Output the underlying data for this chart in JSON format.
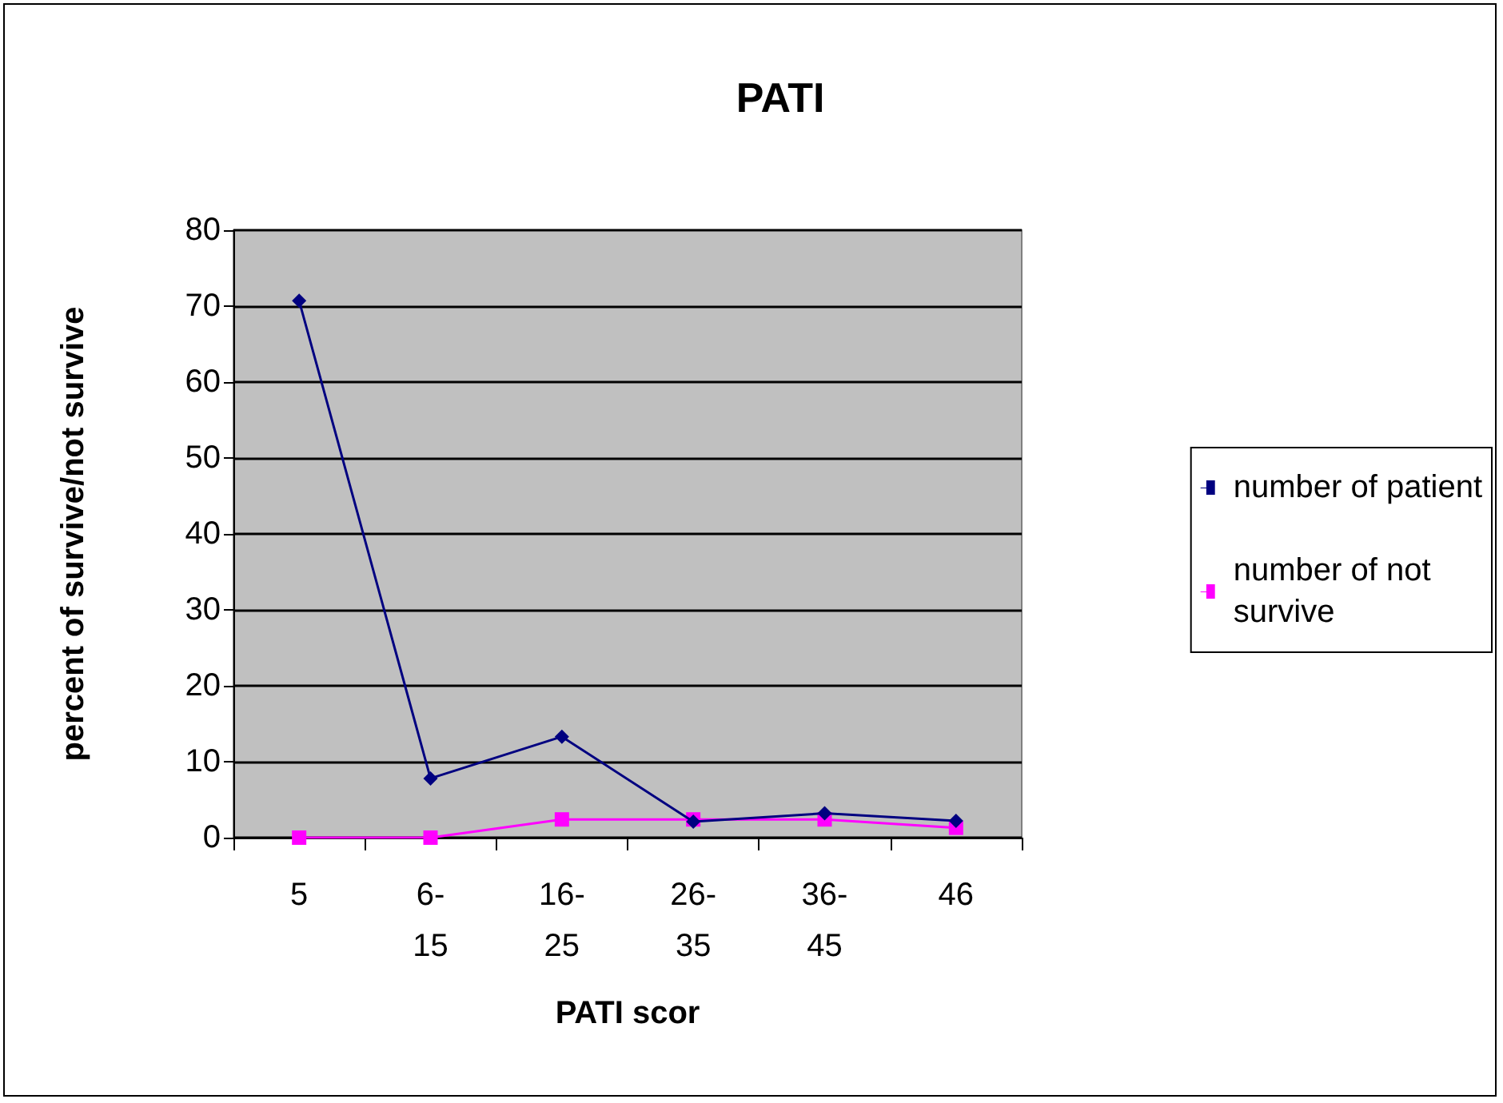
{
  "chart_data": {
    "type": "line",
    "title": "PATI",
    "xlabel": "PATI scor",
    "ylabel": "percent of survive/not survive",
    "categories": [
      "5",
      "6-15",
      "16-25",
      "26-35",
      "36-45",
      "46"
    ],
    "series": [
      {
        "name": "number of patient",
        "color": "#000080",
        "marker": "diamond",
        "values": [
          70.7,
          7.8,
          13.3,
          2.1,
          3.2,
          2.2
        ]
      },
      {
        "name": "number of not survive",
        "color": "#ff00ff",
        "marker": "square",
        "values": [
          0,
          0,
          2.4,
          2.4,
          2.4,
          1.3
        ]
      }
    ],
    "ylim": [
      0,
      80
    ],
    "yticks": [
      0,
      10,
      20,
      30,
      40,
      50,
      60,
      70,
      80
    ],
    "grid": "y",
    "legend": "right"
  }
}
